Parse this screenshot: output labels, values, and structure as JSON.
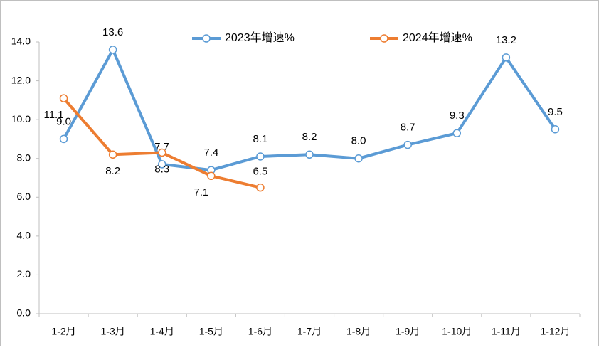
{
  "chart_data": {
    "type": "line",
    "categories": [
      "1-2月",
      "1-3月",
      "1-4月",
      "1-5月",
      "1-6月",
      "1-7月",
      "1-8月",
      "1-9月",
      "1-10月",
      "1-11月",
      "1-12月"
    ],
    "series": [
      {
        "name": "2023年增速%",
        "color": "#5b9bd5",
        "values": [
          9.0,
          13.6,
          7.7,
          7.4,
          8.1,
          8.2,
          8.0,
          8.7,
          9.3,
          13.2,
          9.5
        ],
        "value_labels": [
          "9.0",
          "13.6",
          "7.7",
          "7.4",
          "8.1",
          "8.2",
          "8.0",
          "8.7",
          "9.3",
          "13.2",
          "9.5"
        ]
      },
      {
        "name": "2024年增速%",
        "color": "#ed7d31",
        "values": [
          11.1,
          8.2,
          8.3,
          7.1,
          6.5,
          null,
          null,
          null,
          null,
          null,
          null
        ],
        "value_labels": [
          "11.1",
          "8.2",
          "8.3",
          "7.1",
          "6.5",
          null,
          null,
          null,
          null,
          null,
          null
        ]
      }
    ],
    "ylim": [
      0,
      14
    ],
    "yticks": [
      {
        "value": 0,
        "label": "0.0"
      },
      {
        "value": 2,
        "label": "2.0"
      },
      {
        "value": 4,
        "label": "4.0"
      },
      {
        "value": 6,
        "label": "6.0"
      },
      {
        "value": 8,
        "label": "8.0"
      },
      {
        "value": 10,
        "label": "10.0"
      },
      {
        "value": 12,
        "label": "12.0"
      },
      {
        "value": 14,
        "label": "14.0"
      }
    ],
    "legend": "top"
  }
}
